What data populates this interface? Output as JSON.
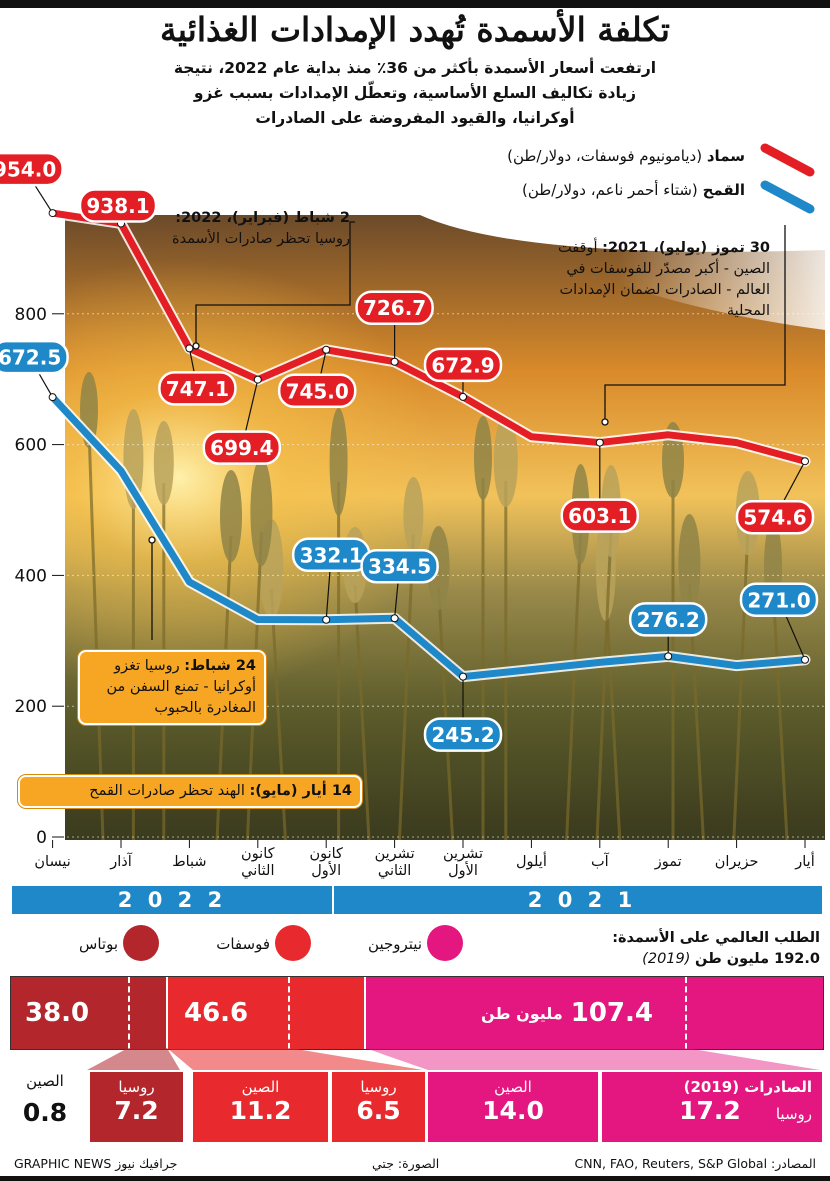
{
  "title": "تكلفة الأسمدة تُهدد الإمدادات الغذائية",
  "subtitle": "ارتفعت أسعار الأسمدة بأكثر من 36٪ منذ بداية عام 2022، نتيجة زيادة تكاليف السلع الأساسية، وتعطّل الإمدادات بسبب غزو أوكرانيا، والقيود المفروضة على الصادرات",
  "legend": {
    "fert_name": "سماد",
    "fert_desc": "(ديامونيوم فوسفات، دولار/طن)",
    "wheat_name": "القمح",
    "wheat_desc": "(شتاء أحمر ناعم، دولار/طن)"
  },
  "annotations": {
    "feb_bold": "2 شباط (فبراير)، 2022:",
    "feb_text": "روسيا تحظر صادرات الأسمدة",
    "jul_bold": "30 تموز (يوليو)، 2021:",
    "jul_text": "أوقفت الصين - أكبر مصدّر للفوسفات في العالم - الصادرات لضمان الإمدادات المحلية",
    "feb24_bold": "24 شباط:",
    "feb24_text": "روسيا تغزو أوكرانيا - تمنع السفن من المغادرة بالحبوب",
    "may14_bold": "14 أيار (مايو):",
    "may14_text": "الهند تحظر صادرات القمح"
  },
  "years": {
    "y2022": "2 0 2 2",
    "y2021": "2 0 2 1"
  },
  "demand": {
    "title": "الطلب العالمي على الأسمدة:",
    "value": "192.0 مليون طن",
    "year": "(2019)",
    "cat_potash": "بوتاس",
    "cat_phosphate": "فوسفات",
    "cat_nitrogen": "نيتروجين",
    "potash_value": "38.0",
    "phosphate_value": "46.6",
    "nitrogen_value": "107.4",
    "nitrogen_unit": "مليون طن",
    "china_potash_label": "الصين",
    "china_potash_value": "0.8",
    "russia_potash_label": "روسيا",
    "russia_potash_value": "7.2",
    "china_phos_label": "الصين",
    "china_phos_value": "11.2",
    "russia_phos_label": "روسيا",
    "russia_phos_value": "6.5",
    "china_nitro_label": "الصين",
    "china_nitro_value": "14.0",
    "exports_label": "الصادرات (2019)",
    "russia_nitro_label": "روسيا",
    "russia_nitro_value": "17.2"
  },
  "footer": {
    "sources": "المصادر: CNN, FAO, Reuters, S&P Global",
    "photo": "الصورة: جتي",
    "brand": "GRAPHIC NEWS جرافيك نيوز"
  },
  "colors": {
    "fertilizer": "#e31e24",
    "wheat": "#1e88c8",
    "potash": "#b3262c",
    "phosphate": "#e82a2e",
    "nitrogen": "#e4167f",
    "orange": "#f6a623"
  },
  "chart_data": {
    "type": "line",
    "categories": [
      "أيار",
      "حزيران",
      "تموز",
      "آب",
      "أيلول",
      "تشرين الأول",
      "تشرين الثاني",
      "كانون الأول",
      "كانون الثاني",
      "شباط",
      "آذار",
      "نيسان"
    ],
    "series": [
      {
        "name": "سماد",
        "values": [
          574.6,
          603,
          615,
          603.1,
          612,
          672.9,
          726.7,
          745.0,
          699.4,
          747.1,
          938.1,
          954.0
        ]
      },
      {
        "name": "القمح",
        "values": [
          271.0,
          262,
          276.2,
          267,
          256,
          245.2,
          334.5,
          332.1,
          332.5,
          390,
          560,
          672.5
        ]
      }
    ],
    "labels": {
      "fert": [
        "954.0",
        "938.1",
        "747.1",
        "699.4",
        "745.0",
        "726.7",
        "672.9",
        "603.1",
        "574.6"
      ],
      "wheat": [
        "672.5",
        "332.1",
        "334.5",
        "245.2",
        "276.2",
        "271.0"
      ]
    },
    "yticks": [
      "800",
      "600",
      "400",
      "200",
      "0"
    ],
    "ylim": [
      0,
      1000
    ]
  }
}
